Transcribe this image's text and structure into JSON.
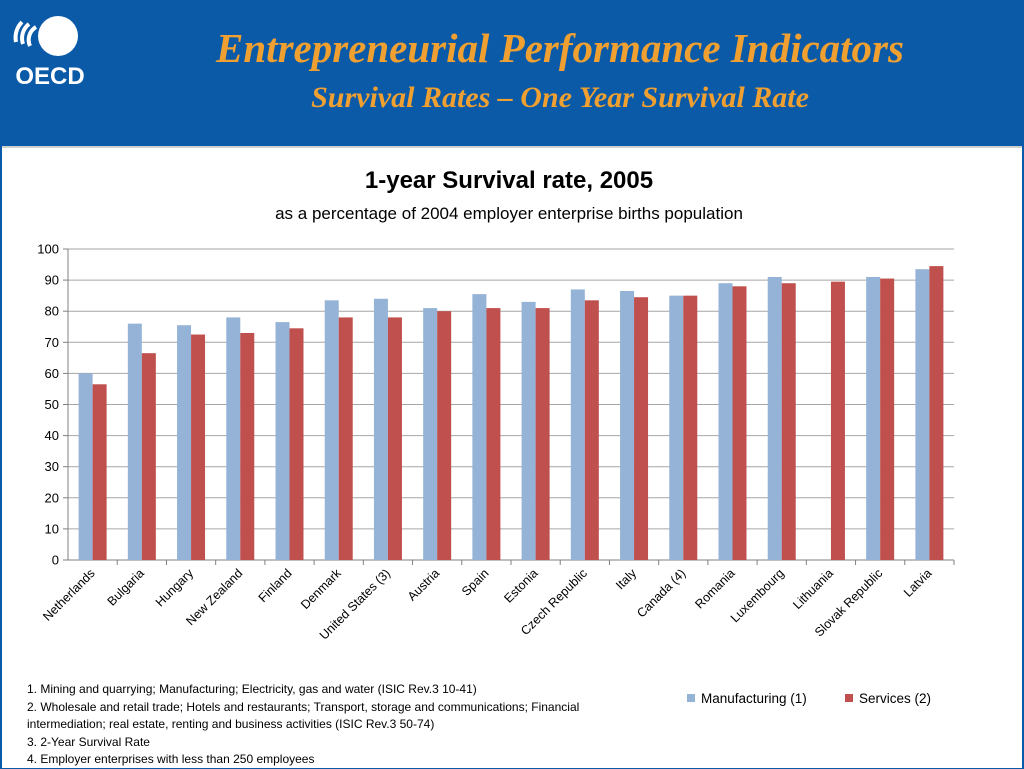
{
  "header": {
    "logo_text": "OECD",
    "title": "Entrepreneurial Performance Indicators",
    "subtitle": "Survival Rates – One Year Survival Rate"
  },
  "colors": {
    "header_bg": "#0a5aa8",
    "title_orange": "#f0a030",
    "manufacturing": "#95b3d7",
    "services": "#c0504d"
  },
  "chart_data": {
    "type": "bar",
    "title": "1-year Survival rate, 2005",
    "subtitle": "as a percentage of 2004 employer enterprise births population",
    "xlabel": "",
    "ylabel": "",
    "ylim": [
      0,
      100
    ],
    "yticks": [
      0,
      10,
      20,
      30,
      40,
      50,
      60,
      70,
      80,
      90,
      100
    ],
    "grid": true,
    "legend_position": "bottom-right",
    "categories": [
      "Netherlands",
      "Bulgaria",
      "Hungary",
      "New Zealand",
      "Finland",
      "Denmark",
      "United States (3)",
      "Austria",
      "Spain",
      "Estonia",
      "Czech Republic",
      "Italy",
      "Canada (4)",
      "Romania",
      "Luxembourg",
      "Lithuania",
      "Slovak Republic",
      "Latvia"
    ],
    "series": [
      {
        "name": "Manufacturing (1)",
        "color": "#95b3d7",
        "values": [
          60,
          76,
          75.5,
          78,
          76.5,
          83.5,
          84,
          81,
          85.5,
          83,
          87,
          86.5,
          85,
          89,
          91,
          null,
          91,
          93.5
        ]
      },
      {
        "name": "Services (2)",
        "color": "#c0504d",
        "values": [
          56.5,
          66.5,
          72.5,
          73,
          74.5,
          78,
          78,
          80,
          81,
          81,
          83.5,
          84.5,
          85,
          88,
          89,
          89.5,
          90.5,
          94.5
        ]
      }
    ]
  },
  "footnotes": [
    "1. Mining and quarrying; Manufacturing;  Electricity, gas and water (ISIC Rev.3 10-41)",
    "2. Wholesale and retail trade; Hotels and restaurants; Transport, storage and communications; Financial",
    "intermediation; real estate, renting and business activities (ISIC Rev.3 50-74)",
    "3. 2-Year Survival Rate",
    "4. Employer enterprises with less than 250 employees"
  ]
}
